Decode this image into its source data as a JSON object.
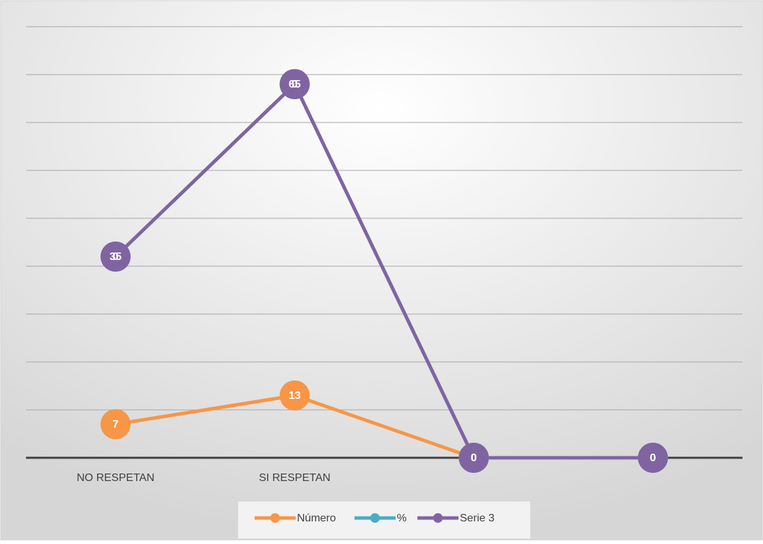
{
  "chart_data": {
    "type": "line",
    "stacked": true,
    "categories": [
      "NO RESPETAN",
      "SI RESPETAN",
      null,
      null
    ],
    "series": [
      {
        "name": "Número",
        "color": "#f79646",
        "values": [
          7,
          13,
          0,
          0
        ]
      },
      {
        "name": "%",
        "color": "#4bacc6",
        "values": [
          35,
          65,
          0,
          0
        ]
      },
      {
        "name": "Serie 3",
        "color": "#8064a2",
        "values": [
          0,
          0,
          0,
          0
        ]
      }
    ],
    "ylim": [
      0,
      90
    ],
    "yticks": [
      0,
      10,
      20,
      30,
      40,
      50,
      60,
      70,
      80,
      90
    ],
    "grid": true,
    "legend": "bottom"
  }
}
